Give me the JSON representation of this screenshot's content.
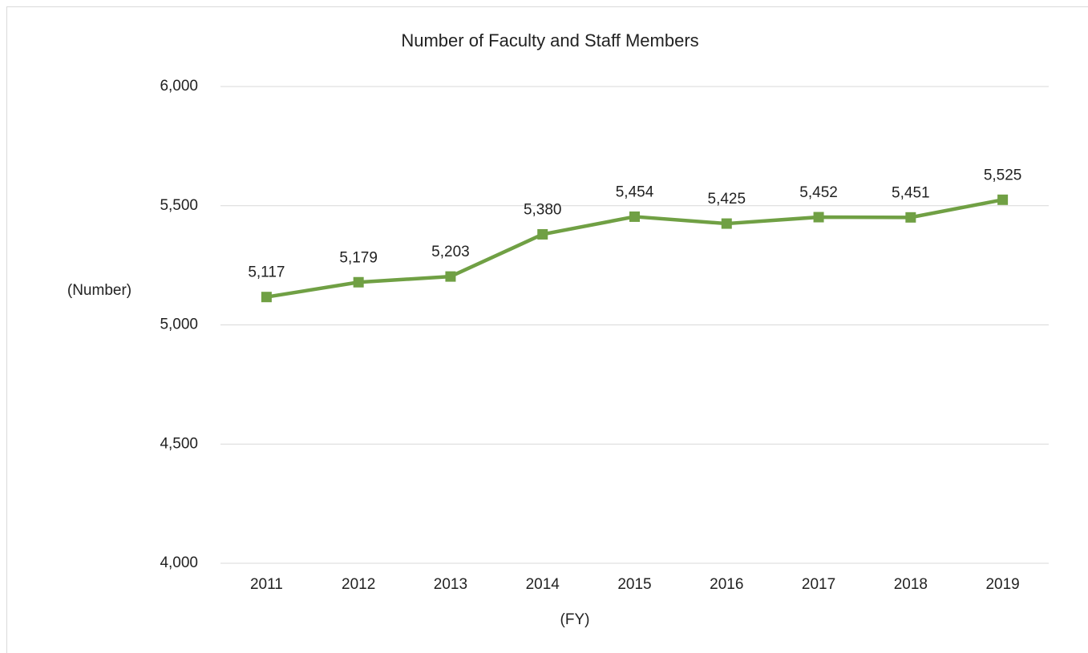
{
  "chart_data": {
    "type": "line",
    "title": "Number of Faculty and Staff Members",
    "y_label": "(Number)",
    "x_label": "(FY)",
    "categories": [
      "2011",
      "2012",
      "2013",
      "2014",
      "2015",
      "2016",
      "2017",
      "2018",
      "2019"
    ],
    "series": [
      {
        "name": "Number of Faculty and Staff Members",
        "color": "#70a044",
        "values": [
          5117,
          5179,
          5203,
          5380,
          5454,
          5425,
          5452,
          5451,
          5525
        ],
        "value_labels": [
          "5,117",
          "5,179",
          "5,203",
          "5,380",
          "5,454",
          "5,425",
          "5,452",
          "5,451",
          "5,525"
        ]
      }
    ],
    "ylim": [
      4000,
      6000
    ],
    "yticks": [
      {
        "value": 4000,
        "label": "4,000"
      },
      {
        "value": 4500,
        "label": "4,500"
      },
      {
        "value": 5000,
        "label": "5,000"
      },
      {
        "value": 5500,
        "label": "5,500"
      },
      {
        "value": 6000,
        "label": "6,000"
      }
    ],
    "grid": true
  }
}
